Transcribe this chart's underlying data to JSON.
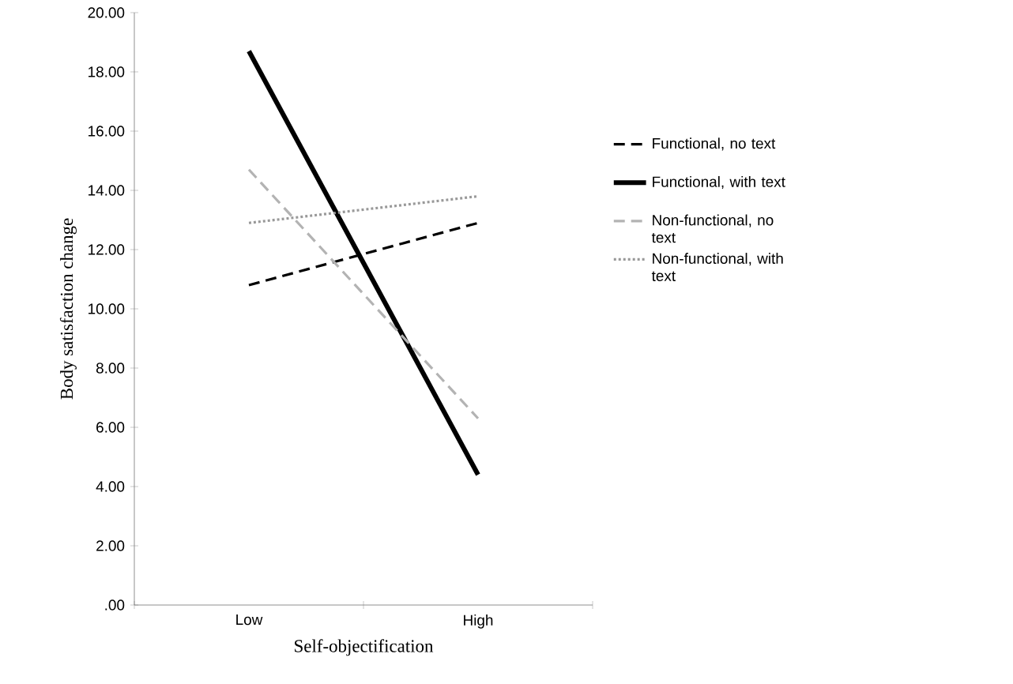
{
  "chart_data": {
    "type": "line",
    "xlabel": "Self-objectification",
    "ylabel": "Body satisfaction change",
    "categories": [
      "Low",
      "High"
    ],
    "series": [
      {
        "name": "Functional, no text",
        "color": "#000000",
        "line_style": "dashed",
        "values": [
          10.8,
          12.9
        ]
      },
      {
        "name": "Functional, with text",
        "color": "#000000",
        "line_style": "solid",
        "values": [
          18.7,
          4.4
        ]
      },
      {
        "name": "Non-functional, no text",
        "color": "#b3b3b3",
        "line_style": "dashed",
        "values": [
          14.7,
          6.3
        ]
      },
      {
        "name": "Non-functional, with text",
        "color": "#999999",
        "line_style": "dotted",
        "values": [
          12.9,
          13.8
        ]
      }
    ],
    "ylim": [
      0,
      20
    ],
    "yticks": [
      {
        "value": 0,
        "label": ".00"
      },
      {
        "value": 2,
        "label": "2.00"
      },
      {
        "value": 4,
        "label": "4.00"
      },
      {
        "value": 6,
        "label": "6.00"
      },
      {
        "value": 8,
        "label": "8.00"
      },
      {
        "value": 10,
        "label": "10.00"
      },
      {
        "value": 12,
        "label": "12.00"
      },
      {
        "value": 14,
        "label": "14.00"
      },
      {
        "value": 16,
        "label": "16.00"
      },
      {
        "value": 18,
        "label": "18.00"
      },
      {
        "value": 20,
        "label": "20.00"
      }
    ],
    "grid": false,
    "legend": "right",
    "marker": "none"
  }
}
